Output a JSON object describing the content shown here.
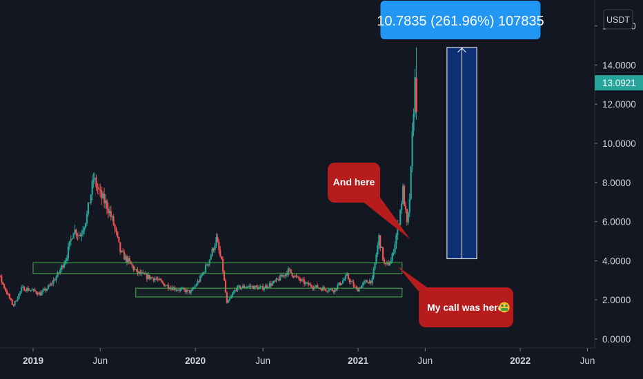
{
  "chart_data": {
    "type": "candlestick",
    "unit_label": "USDT",
    "last_price": "13.0921",
    "y_axis": {
      "ticks": [
        "0.0000",
        "2.0000",
        "4.0000",
        "6.0000",
        "8.0000",
        "10.0000",
        "12.0000",
        "14.0000",
        "16.0000"
      ],
      "ylim": [
        0,
        16
      ]
    },
    "x_axis": {
      "ticks": [
        {
          "label": "2019",
          "date": "2019-01-01",
          "bold": true
        },
        {
          "label": "Jun",
          "date": "2019-06-01",
          "bold": false
        },
        {
          "label": "2020",
          "date": "2020-01-01",
          "bold": true
        },
        {
          "label": "Jun",
          "date": "2020-06-01",
          "bold": false
        },
        {
          "label": "2021",
          "date": "2021-01-01",
          "bold": true
        },
        {
          "label": "Jun",
          "date": "2021-06-01",
          "bold": false
        },
        {
          "label": "2022",
          "date": "2022-01-01",
          "bold": true
        },
        {
          "label": "Jun",
          "date": "2022-06-01",
          "bold": false
        }
      ],
      "xlim": [
        "2018-09-01",
        "2022-07-10"
      ]
    },
    "price_path": [
      [
        "2018-09-01",
        5.6
      ],
      [
        "2018-09-20",
        5.0
      ],
      [
        "2018-10-10",
        3.7
      ],
      [
        "2018-11-01",
        2.6
      ],
      [
        "2018-11-20",
        1.7
      ],
      [
        "2018-12-10",
        2.6
      ],
      [
        "2019-01-01",
        2.5
      ],
      [
        "2019-01-20",
        2.3
      ],
      [
        "2019-02-10",
        2.7
      ],
      [
        "2019-03-01",
        3.3
      ],
      [
        "2019-03-20",
        4.2
      ],
      [
        "2019-04-05",
        5.6
      ],
      [
        "2019-04-20",
        5.3
      ],
      [
        "2019-05-05",
        6.3
      ],
      [
        "2019-05-20",
        8.2
      ],
      [
        "2019-06-05",
        7.3
      ],
      [
        "2019-06-20",
        6.8
      ],
      [
        "2019-07-05",
        5.8
      ],
      [
        "2019-07-20",
        4.4
      ],
      [
        "2019-08-05",
        4.0
      ],
      [
        "2019-08-25",
        3.4
      ],
      [
        "2019-09-15",
        3.2
      ],
      [
        "2019-10-05",
        3.1
      ],
      [
        "2019-10-25",
        2.8
      ],
      [
        "2019-11-15",
        2.6
      ],
      [
        "2019-12-05",
        2.5
      ],
      [
        "2019-12-25",
        2.4
      ],
      [
        "2020-01-15",
        3.1
      ],
      [
        "2020-02-05",
        4.1
      ],
      [
        "2020-02-20",
        5.1
      ],
      [
        "2020-03-05",
        3.7
      ],
      [
        "2020-03-15",
        1.8
      ],
      [
        "2020-04-05",
        2.6
      ],
      [
        "2020-05-01",
        2.7
      ],
      [
        "2020-06-01",
        2.6
      ],
      [
        "2020-07-01",
        2.9
      ],
      [
        "2020-08-01",
        3.5
      ],
      [
        "2020-08-20",
        3.1
      ],
      [
        "2020-09-10",
        2.8
      ],
      [
        "2020-10-10",
        2.6
      ],
      [
        "2020-11-10",
        2.5
      ],
      [
        "2020-12-10",
        3.2
      ],
      [
        "2021-01-01",
        2.5
      ],
      [
        "2021-01-20",
        2.9
      ],
      [
        "2021-02-05",
        3.0
      ],
      [
        "2021-02-20",
        5.2
      ],
      [
        "2021-03-05",
        3.7
      ],
      [
        "2021-03-20",
        4.0
      ],
      [
        "2021-04-05",
        5.9
      ],
      [
        "2021-04-15",
        7.6
      ],
      [
        "2021-04-25",
        5.6
      ],
      [
        "2021-05-02",
        7.9
      ],
      [
        "2021-05-08",
        11.5
      ],
      [
        "2021-05-12",
        13.09
      ]
    ],
    "support_zones": [
      {
        "name": "zone-upper",
        "from": "2019-01-01",
        "to": "2021-04-10",
        "y_low": 3.35,
        "y_high": 3.9
      },
      {
        "name": "zone-lower",
        "from": "2019-08-20",
        "to": "2021-04-10",
        "y_low": 2.15,
        "y_high": 2.6
      }
    ],
    "measure": {
      "label": "10.7835 (261.96%) 107835",
      "from": "2021-07-20",
      "to": "2021-09-25",
      "y_low": 4.1,
      "y_high": 14.9
    },
    "callouts": [
      {
        "name": "callout-and-here",
        "text": "And here",
        "position": "upper",
        "emoji": ""
      },
      {
        "name": "callout-my-call",
        "text": "My call was here",
        "position": "lower",
        "emoji": "money-mouth-face"
      }
    ],
    "colors": {
      "background": "#131722",
      "up": "#26a69a",
      "down": "#ef5350",
      "zone_stroke": "#4caf50",
      "measure_fill": "#0d2f73",
      "measure_stroke": "#ffffff",
      "callout_fill": "#b71c1c",
      "measure_label_fill": "#2196f3",
      "last_price_fill": "#26a69a",
      "axis_text": "#d1d4dc"
    }
  }
}
